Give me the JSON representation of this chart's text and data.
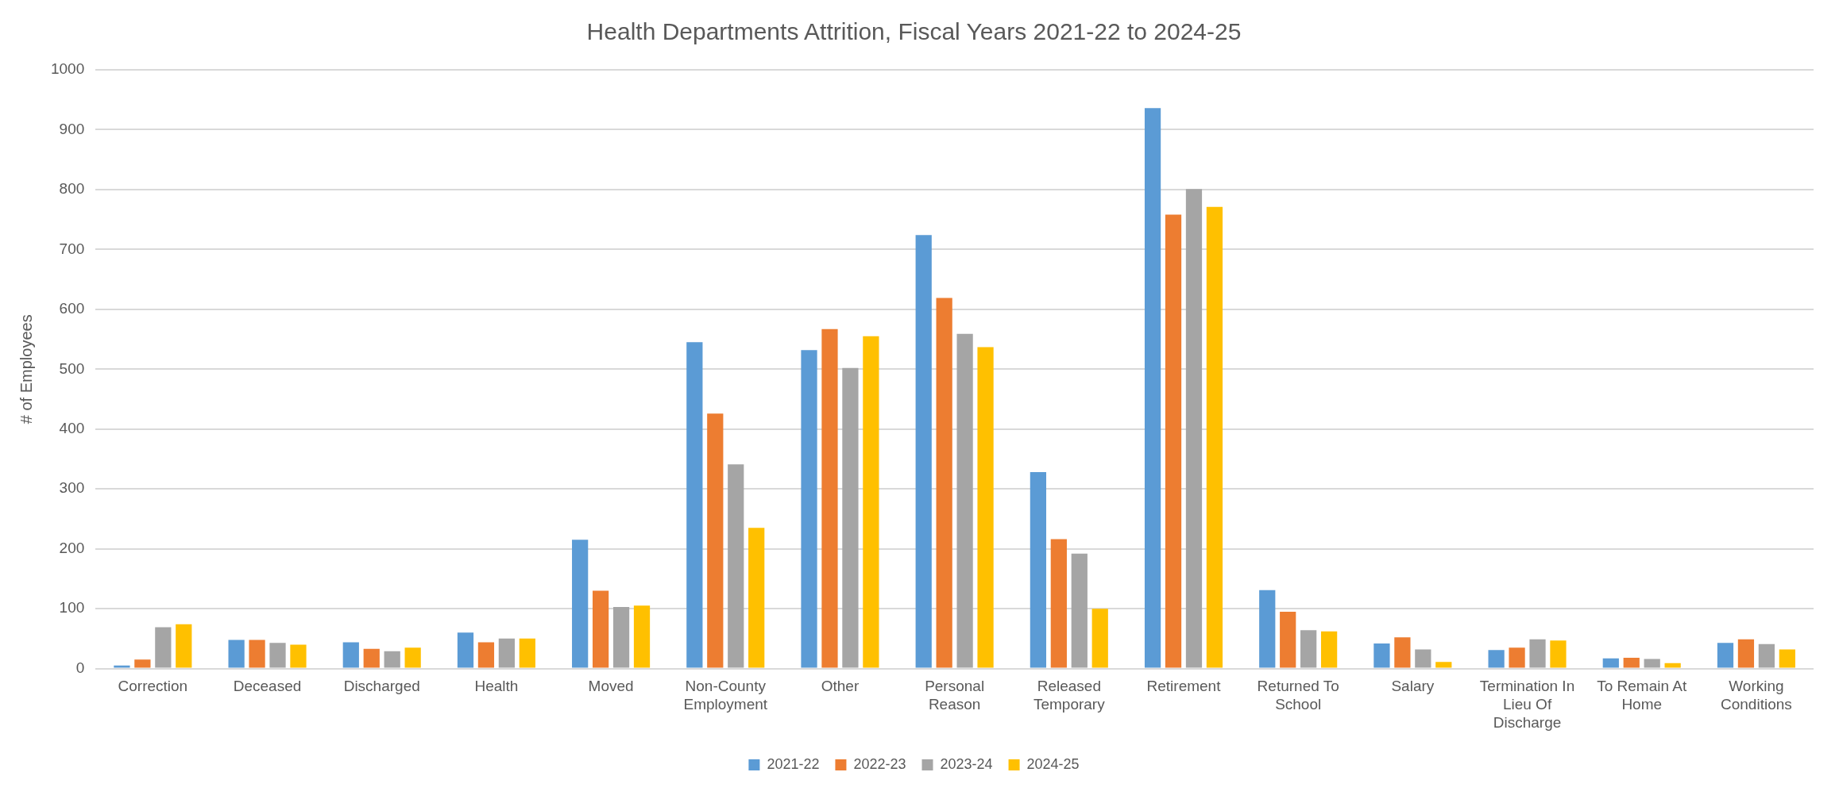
{
  "chart_data": {
    "type": "bar",
    "title": "Health Departments Attrition, Fiscal Years 2021-22 to 2024-25",
    "ylabel": "# of Employees",
    "categories": [
      "Correction",
      "Deceased",
      "Discharged",
      "Health",
      "Moved",
      "Non-County Employment",
      "Other",
      "Personal Reason",
      "Released Temporary",
      "Retirement",
      "Returned To School",
      "Salary",
      "Termination In Lieu Of Discharge",
      "To Remain At Home",
      "Working Conditions"
    ],
    "series": [
      {
        "name": "2021-22",
        "color": "#5b9bd5",
        "values": [
          5,
          48,
          44,
          60,
          215,
          545,
          532,
          724,
          328,
          936,
          131,
          42,
          31,
          17,
          43
        ]
      },
      {
        "name": "2022-23",
        "color": "#ed7d31",
        "values": [
          15,
          48,
          33,
          44,
          130,
          426,
          567,
          619,
          216,
          758,
          95,
          52,
          35,
          18,
          49
        ]
      },
      {
        "name": "2023-24",
        "color": "#a5a5a5",
        "values": [
          69,
          43,
          29,
          50,
          103,
          341,
          502,
          559,
          192,
          801,
          64,
          32,
          49,
          16,
          41
        ]
      },
      {
        "name": "2024-25",
        "color": "#ffc000",
        "values": [
          74,
          40,
          35,
          50,
          105,
          235,
          555,
          537,
          100,
          771,
          62,
          11,
          47,
          9,
          32
        ]
      }
    ],
    "ylim": [
      0,
      1000
    ],
    "yticks": [
      0,
      100,
      200,
      300,
      400,
      500,
      600,
      700,
      800,
      900,
      1000
    ],
    "grid": "y",
    "legend": "bottom"
  }
}
